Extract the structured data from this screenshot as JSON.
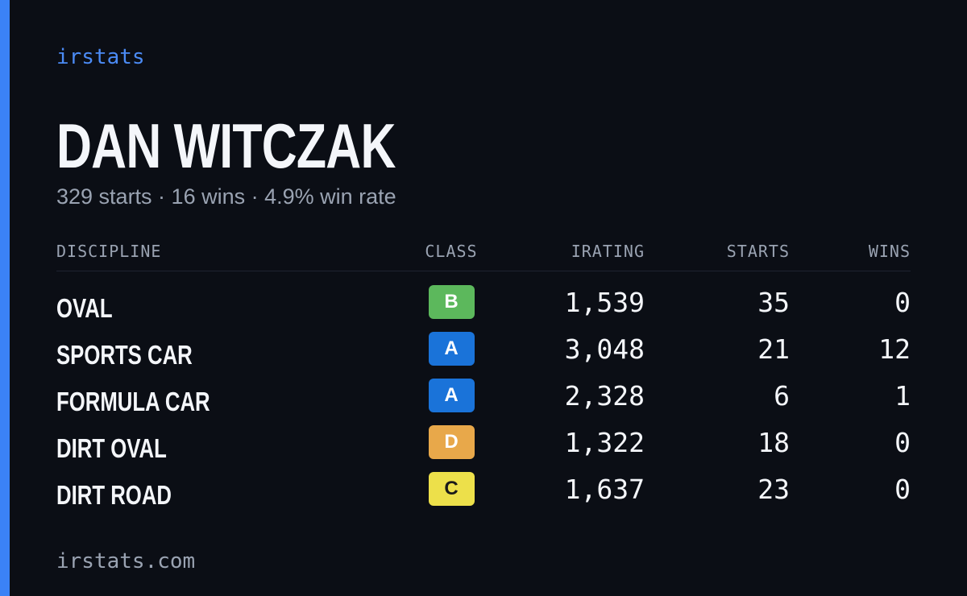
{
  "brand": "irstats",
  "driver": {
    "name": "DAN WITCZAK",
    "summary": "329 starts · 16 wins · 4.9% win rate"
  },
  "table": {
    "headers": [
      "DISCIPLINE",
      "CLASS",
      "IRATING",
      "STARTS",
      "WINS"
    ],
    "rows": [
      {
        "discipline": "OVAL",
        "class": "B",
        "class_color": "#5cb85c",
        "irating": "1,539",
        "starts": 35,
        "wins": 0
      },
      {
        "discipline": "SPORTS CAR",
        "class": "A",
        "class_color": "#1a73d9",
        "irating": "3,048",
        "starts": 21,
        "wins": 12
      },
      {
        "discipline": "FORMULA CAR",
        "class": "A",
        "class_color": "#1a73d9",
        "irating": "2,328",
        "starts": 6,
        "wins": 1
      },
      {
        "discipline": "DIRT OVAL",
        "class": "D",
        "class_color": "#e8a84a",
        "irating": "1,322",
        "starts": 18,
        "wins": 0
      },
      {
        "discipline": "DIRT ROAD",
        "class": "C",
        "class_color": "#ede04a",
        "irating": "1,637",
        "starts": 23,
        "wins": 0
      }
    ]
  },
  "footer": "irstats.com"
}
